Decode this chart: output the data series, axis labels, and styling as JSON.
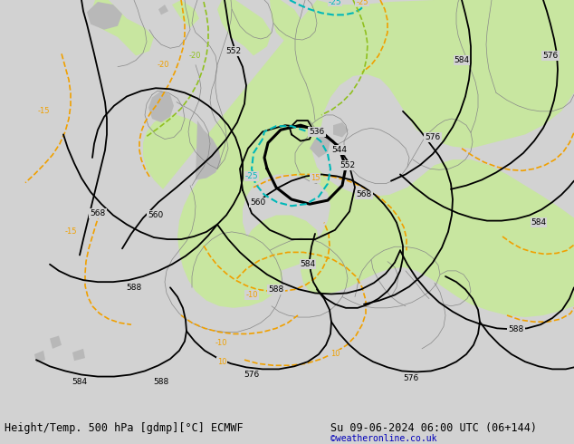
{
  "title_left": "Height/Temp. 500 hPa [gdmp][°C] ECMWF",
  "title_right": "Su 09-06-2024 06:00 UTC (06+144)",
  "credit": "©weatheronline.co.uk",
  "bg_color": "#d2d2d2",
  "ocean_color": "#d2d2d2",
  "land_green": "#c8e6a0",
  "land_gray": "#b8b8b8",
  "black": "#000000",
  "orange": "#f0a000",
  "cyan": "#00b8b8",
  "yellow_green": "#90c020",
  "coast_color": "#888888",
  "font_title": 8.5,
  "font_label": 6.5,
  "font_credit": 7
}
